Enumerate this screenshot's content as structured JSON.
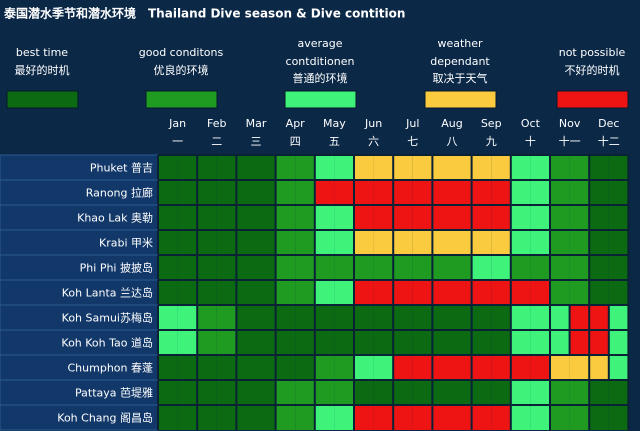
{
  "header": {
    "title_cn": "泰国潜水季节和潜水环境",
    "title_en": "Thailand Dive season & Dive contition"
  },
  "legend": [
    {
      "label": "best time",
      "label_cn": "最好的时机",
      "color": "#0b6a12"
    },
    {
      "label": "good conditons",
      "label_cn": "优良的环境",
      "color": "#1f9b22"
    },
    {
      "label": "average contditionen",
      "label_cn": "普通的环境",
      "color": "#3ef27a"
    },
    {
      "label": "weather dependant",
      "label_cn": "取决于天气",
      "color": "#fbcb3f"
    },
    {
      "label": "not possible",
      "label_cn": "不好的时机",
      "color": "#ee1414"
    }
  ],
  "months": [
    [
      "Jan",
      "一"
    ],
    [
      "Feb",
      "二"
    ],
    [
      "Mar",
      "三"
    ],
    [
      "Apr",
      "四"
    ],
    [
      "May",
      "五"
    ],
    [
      "Jun",
      "六"
    ],
    [
      "Jul",
      "七"
    ],
    [
      "Aug",
      "八"
    ],
    [
      "Sep",
      "九"
    ],
    [
      "Oct",
      "十"
    ],
    [
      "Nov",
      "十一"
    ],
    [
      "Dec",
      "十二"
    ]
  ],
  "rows": [
    {
      "label": "Phuket 普吉",
      "cells": [
        0,
        0,
        0,
        0,
        0,
        0,
        1,
        1,
        2,
        2,
        3,
        3,
        3,
        3,
        3,
        3,
        3,
        3,
        2,
        2,
        1,
        1,
        0,
        0
      ]
    },
    {
      "label": "Ranong 拉廊",
      "cells": [
        0,
        0,
        0,
        0,
        0,
        0,
        1,
        1,
        4,
        4,
        4,
        4,
        4,
        4,
        4,
        4,
        4,
        4,
        2,
        2,
        1,
        1,
        0,
        0
      ]
    },
    {
      "label": "Khao Lak 奥勒",
      "cells": [
        0,
        0,
        0,
        0,
        0,
        0,
        1,
        1,
        2,
        2,
        4,
        4,
        4,
        4,
        4,
        4,
        4,
        4,
        2,
        2,
        1,
        1,
        0,
        0
      ]
    },
    {
      "label": "Krabi 甲米",
      "cells": [
        0,
        0,
        0,
        0,
        0,
        0,
        1,
        1,
        2,
        2,
        3,
        3,
        3,
        3,
        3,
        3,
        3,
        3,
        2,
        2,
        1,
        1,
        0,
        0
      ]
    },
    {
      "label": "Phi Phi 披披岛",
      "cells": [
        0,
        0,
        0,
        0,
        0,
        0,
        1,
        1,
        1,
        1,
        1,
        1,
        1,
        1,
        1,
        1,
        2,
        2,
        1,
        1,
        1,
        1,
        0,
        0
      ]
    },
    {
      "label": "Koh Lanta 兰达岛",
      "cells": [
        0,
        0,
        0,
        0,
        0,
        0,
        1,
        1,
        2,
        2,
        4,
        4,
        4,
        4,
        4,
        4,
        4,
        4,
        4,
        4,
        1,
        1,
        0,
        0
      ]
    },
    {
      "label": "Koh Samui苏梅岛",
      "cells": [
        2,
        2,
        1,
        1,
        0,
        0,
        0,
        0,
        0,
        0,
        0,
        0,
        0,
        0,
        0,
        0,
        0,
        0,
        2,
        2,
        2,
        4,
        4,
        2
      ]
    },
    {
      "label": "Koh Koh Tao 道岛",
      "cells": [
        2,
        2,
        1,
        1,
        0,
        0,
        0,
        0,
        0,
        0,
        0,
        0,
        0,
        0,
        0,
        0,
        0,
        0,
        2,
        2,
        2,
        4,
        4,
        2
      ]
    },
    {
      "label": "Chumphon 春蓬",
      "cells": [
        0,
        0,
        0,
        0,
        0,
        0,
        0,
        0,
        1,
        1,
        2,
        2,
        4,
        4,
        4,
        4,
        4,
        4,
        4,
        4,
        3,
        3,
        3,
        2
      ]
    },
    {
      "label": "Pattaya 芭堤雅",
      "cells": [
        0,
        0,
        0,
        0,
        0,
        0,
        1,
        1,
        1,
        1,
        0,
        0,
        0,
        0,
        0,
        0,
        0,
        0,
        2,
        2,
        1,
        1,
        0,
        0
      ]
    },
    {
      "label": "Koh Chang 阁昌岛",
      "cells": [
        0,
        0,
        0,
        0,
        0,
        0,
        1,
        1,
        2,
        2,
        4,
        4,
        4,
        4,
        4,
        4,
        4,
        4,
        2,
        2,
        1,
        1,
        0,
        0
      ]
    }
  ]
}
